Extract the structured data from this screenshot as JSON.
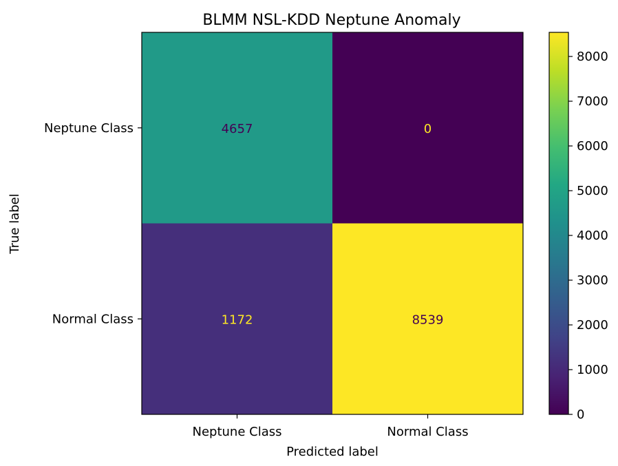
{
  "chart_data": {
    "type": "heatmap",
    "title": "BLMM NSL-KDD Neptune Anomaly",
    "xlabel": "Predicted label",
    "ylabel": "True label",
    "x_categories": [
      "Neptune Class",
      "Normal Class"
    ],
    "y_categories": [
      "Neptune Class",
      "Normal Class"
    ],
    "values": [
      [
        4657,
        0
      ],
      [
        1172,
        8539
      ]
    ],
    "value_labels": [
      [
        "4657",
        "0"
      ],
      [
        "1172",
        "8539"
      ]
    ],
    "colormap": "viridis",
    "colorbar": {
      "range": [
        0,
        8539
      ],
      "ticks": [
        0,
        1000,
        2000,
        3000,
        4000,
        5000,
        6000,
        7000,
        8000
      ],
      "tick_labels": [
        "0",
        "1000",
        "2000",
        "3000",
        "4000",
        "5000",
        "6000",
        "7000",
        "8000"
      ]
    },
    "grid": false
  }
}
